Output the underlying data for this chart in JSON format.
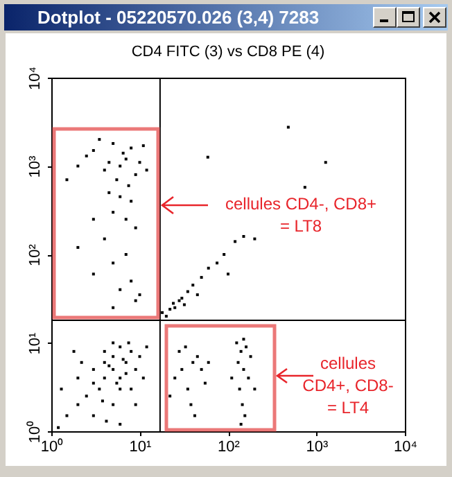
{
  "chart_data": {
    "type": "scatter",
    "title": "Dotplot - 05220570.026 (3,4) 7283",
    "subtitle": "CD4 FITC (3) vs CD8 PE (4)",
    "log": "xy",
    "marker": "square",
    "xlim": [
      1,
      10000
    ],
    "ylim": [
      1,
      10000
    ],
    "xticks": [
      {
        "value": 1,
        "label": "10⁰"
      },
      {
        "value": 10,
        "label": "10¹"
      },
      {
        "value": 100,
        "label": "10²"
      },
      {
        "value": 1000,
        "label": "10³"
      },
      {
        "value": 10000,
        "label": "10⁴"
      }
    ],
    "yticks": [
      {
        "value": 1,
        "label": "10⁰"
      },
      {
        "value": 10,
        "label": "10¹"
      },
      {
        "value": 100,
        "label": "10²"
      },
      {
        "value": 1000,
        "label": "10³"
      },
      {
        "value": 10000,
        "label": "10⁴"
      }
    ],
    "ref_lines": [
      {
        "axis": "x",
        "value": 17,
        "color": "#000000"
      },
      {
        "axis": "y",
        "value": 18,
        "color": "#000000"
      }
    ],
    "annotations": [
      "cellules CD4-, CD8+\n= LT8",
      "cellules\nCD4+, CD8-\n= LT4"
    ],
    "series": [
      {
        "color": "#000000",
        "x": [
          4,
          5,
          6,
          3.5,
          7,
          5,
          4,
          6,
          8,
          3,
          2.5,
          9,
          5,
          6,
          4.5,
          7,
          3,
          2,
          10,
          5.5,
          4,
          8,
          2,
          1.5,
          6.5,
          3.8,
          1.2,
          12,
          2.2,
          7.5,
          1.3,
          4.2,
          9,
          3,
          11,
          5,
          1.8,
          6,
          30,
          40,
          35,
          45,
          25,
          50,
          28,
          38,
          22,
          55,
          33,
          42,
          60,
          140,
          130,
          150,
          160,
          135,
          145,
          170,
          125,
          155,
          180,
          140,
          110,
          200,
          150,
          3,
          5,
          7,
          4,
          6,
          8,
          10,
          2.5,
          5.5,
          9,
          3.5,
          6.5,
          4.5,
          7.5,
          11,
          2,
          8,
          5,
          6,
          3,
          9,
          4,
          7,
          5,
          3,
          8,
          6,
          10,
          2,
          4.5,
          12,
          1.5,
          7,
          5,
          9,
          20,
          22,
          25,
          28,
          24,
          30,
          35,
          40,
          50,
          60,
          75,
          90,
          120,
          150,
          200,
          100,
          45,
          18,
          32,
          480,
          59,
          1270,
          740
        ],
        "values": [
          4,
          5,
          4,
          3,
          6,
          7,
          6,
          3,
          8,
          5,
          2.5,
          5,
          2,
          9,
          5.5,
          4.5,
          3.5,
          2,
          7,
          3.5,
          8,
          3,
          4,
          1.5,
          6.5,
          2.2,
          1.1,
          9,
          6,
          10,
          3,
          1.3,
          2,
          1.5,
          4,
          10,
          8,
          1.2,
          5,
          6,
          3,
          7,
          4,
          5,
          8,
          2,
          2.5,
          3.5,
          9,
          1.5,
          6,
          8,
          6,
          5,
          9,
          3,
          2,
          4,
          10,
          1.5,
          7,
          1.2,
          4,
          3,
          11,
          1500,
          1800,
          1200,
          900,
          1000,
          1600,
          1100,
          1300,
          700,
          800,
          2000,
          1400,
          1100,
          600,
          1700,
          1000,
          400,
          300,
          450,
          250,
          200,
          150,
          100,
          80,
          60,
          50,
          40,
          35,
          120,
          500,
          900,
          700,
          250,
          25,
          30,
          20,
          24,
          25,
          30,
          28,
          32,
          38,
          45,
          55,
          70,
          80,
          100,
          140,
          160,
          150,
          60,
          35,
          22,
          27,
          2750,
          1260,
          1100,
          575
        ]
      }
    ]
  }
}
